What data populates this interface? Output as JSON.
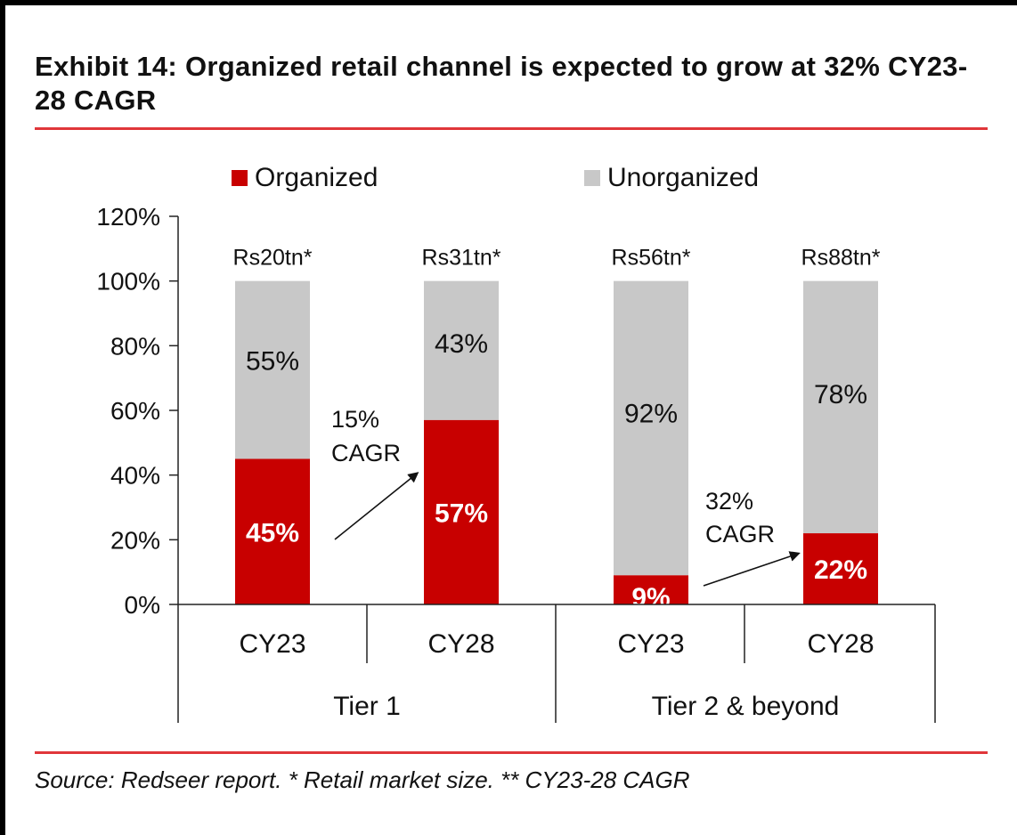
{
  "title": "Exhibit 14: Organized retail channel is expected to grow at 32% CY23-28 CAGR",
  "source": "Source: Redseer report. * Retail market size. ** CY23-28 CAGR",
  "colors": {
    "organized": "#c80000",
    "unorganized": "#c8c8c8",
    "rule": "#e0363a"
  },
  "chart_data": {
    "type": "bar",
    "stacked": true,
    "percent": true,
    "categories": [
      "CY23",
      "CY28",
      "CY23",
      "CY28"
    ],
    "groups": [
      {
        "label": "Tier 1",
        "categories": [
          "CY23",
          "CY28"
        ]
      },
      {
        "label": "Tier 2 & beyond",
        "categories": [
          "CY23",
          "CY28"
        ]
      }
    ],
    "series": [
      {
        "name": "Organized",
        "values": [
          45,
          57,
          9,
          22
        ],
        "labels": [
          "45%",
          "57%",
          "9%",
          "22%"
        ]
      },
      {
        "name": "Unorganized",
        "values": [
          55,
          43,
          92,
          78
        ],
        "labels": [
          "55%",
          "43%",
          "92%",
          "78%"
        ]
      }
    ],
    "bar_top_labels": [
      "Rs20tn*",
      "Rs31tn*",
      "Rs56tn*",
      "Rs88tn*"
    ],
    "y_ticks": [
      "0%",
      "20%",
      "40%",
      "60%",
      "80%",
      "100%",
      "120%"
    ],
    "ylim": [
      0,
      120
    ],
    "legend_position": "top",
    "annotations": [
      {
        "line1": "15%",
        "line2": "CAGR",
        "from_bar": 0,
        "to_bar": 1
      },
      {
        "line1": "32%",
        "line2": "CAGR",
        "from_bar": 2,
        "to_bar": 3
      }
    ],
    "grid": false
  }
}
